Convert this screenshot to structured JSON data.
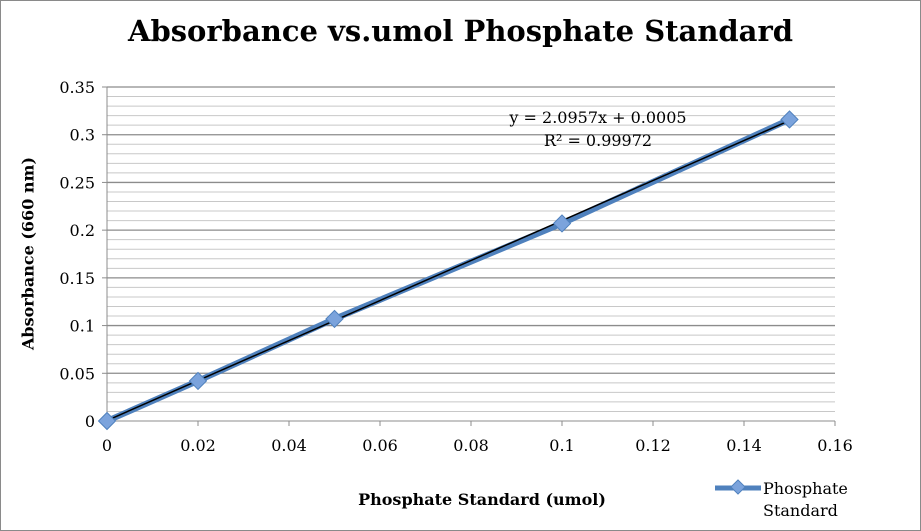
{
  "chart_data": {
    "type": "scatter",
    "title": "Absorbance vs.umol Phosphate Standard",
    "xlabel": "Phosphate Standard (umol)",
    "ylabel": "Absorbance (660 nm)",
    "xlim": [
      0,
      0.16
    ],
    "ylim": [
      0,
      0.35
    ],
    "xticks": [
      "0",
      "0.02",
      "0.04",
      "0.06",
      "0.08",
      "0.1",
      "0.12",
      "0.14",
      "0.16"
    ],
    "yticks": [
      "0",
      "0.05",
      "0.1",
      "0.15",
      "0.2",
      "0.25",
      "0.3",
      "0.35"
    ],
    "grid": "horizontal major 0.05 and minor 0.01",
    "legend_placement": "bottom-right",
    "series": [
      {
        "name": "Phosphate Standard",
        "color": "#4f81bd",
        "marker": "diamond",
        "x": [
          0,
          0.02,
          0.05,
          0.1,
          0.15
        ],
        "y": [
          0,
          0.042,
          0.107,
          0.207,
          0.316
        ]
      }
    ],
    "trendline": {
      "slope": 2.0957,
      "intercept": 0.0005,
      "color": "#000000",
      "equation": "y = 2.0957x + 0.0005",
      "r2_label": "R² = 0.99972"
    }
  }
}
